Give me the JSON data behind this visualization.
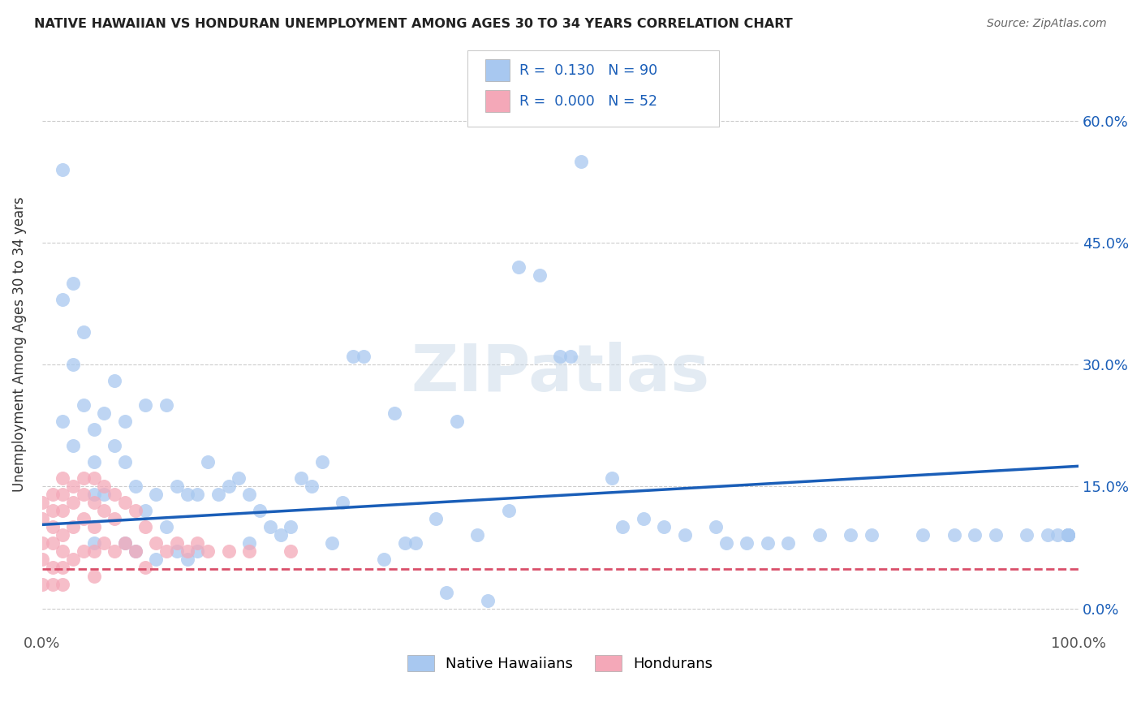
{
  "title": "NATIVE HAWAIIAN VS HONDURAN UNEMPLOYMENT AMONG AGES 30 TO 34 YEARS CORRELATION CHART",
  "source": "Source: ZipAtlas.com",
  "ylabel": "Unemployment Among Ages 30 to 34 years",
  "xlim": [
    0.0,
    1.0
  ],
  "ylim": [
    -0.03,
    0.68
  ],
  "yticks": [
    0.0,
    0.15,
    0.3,
    0.45,
    0.6
  ],
  "ytick_labels": [
    "0.0%",
    "15.0%",
    "30.0%",
    "45.0%",
    "60.0%"
  ],
  "xticks": [
    0.0,
    1.0
  ],
  "xtick_labels": [
    "0.0%",
    "100.0%"
  ],
  "r_hawaiian": 0.13,
  "n_hawaiian": 90,
  "r_honduran": 0.0,
  "n_honduran": 52,
  "hawaiian_color": "#a8c8f0",
  "honduran_color": "#f4a8b8",
  "hawaiian_line_color": "#1a5eb8",
  "honduran_line_color": "#d94f6a",
  "grid_color": "#cccccc",
  "watermark": "ZIPatlas",
  "haw_line_x0": 0.0,
  "haw_line_y0": 0.103,
  "haw_line_x1": 1.0,
  "haw_line_y1": 0.175,
  "hon_line_y": 0.048,
  "hawaiian_x": [
    0.02,
    0.02,
    0.02,
    0.03,
    0.03,
    0.03,
    0.04,
    0.04,
    0.05,
    0.05,
    0.05,
    0.05,
    0.06,
    0.06,
    0.07,
    0.07,
    0.08,
    0.08,
    0.08,
    0.09,
    0.09,
    0.1,
    0.1,
    0.11,
    0.11,
    0.12,
    0.12,
    0.13,
    0.13,
    0.14,
    0.14,
    0.15,
    0.15,
    0.16,
    0.17,
    0.18,
    0.19,
    0.2,
    0.2,
    0.21,
    0.22,
    0.23,
    0.24,
    0.25,
    0.26,
    0.27,
    0.28,
    0.29,
    0.3,
    0.31,
    0.33,
    0.34,
    0.35,
    0.36,
    0.38,
    0.39,
    0.4,
    0.42,
    0.43,
    0.45,
    0.46,
    0.48,
    0.5,
    0.51,
    0.52,
    0.55,
    0.56,
    0.58,
    0.6,
    0.62,
    0.65,
    0.66,
    0.68,
    0.7,
    0.72,
    0.75,
    0.78,
    0.8,
    0.85,
    0.88,
    0.9,
    0.92,
    0.95,
    0.97,
    0.98,
    0.99,
    0.99,
    0.99,
    0.99,
    0.99
  ],
  "hawaiian_y": [
    0.54,
    0.38,
    0.23,
    0.4,
    0.3,
    0.2,
    0.34,
    0.25,
    0.22,
    0.18,
    0.14,
    0.08,
    0.24,
    0.14,
    0.28,
    0.2,
    0.23,
    0.18,
    0.08,
    0.15,
    0.07,
    0.25,
    0.12,
    0.14,
    0.06,
    0.25,
    0.1,
    0.15,
    0.07,
    0.14,
    0.06,
    0.14,
    0.07,
    0.18,
    0.14,
    0.15,
    0.16,
    0.14,
    0.08,
    0.12,
    0.1,
    0.09,
    0.1,
    0.16,
    0.15,
    0.18,
    0.08,
    0.13,
    0.31,
    0.31,
    0.06,
    0.24,
    0.08,
    0.08,
    0.11,
    0.02,
    0.23,
    0.09,
    0.01,
    0.12,
    0.42,
    0.41,
    0.31,
    0.31,
    0.55,
    0.16,
    0.1,
    0.11,
    0.1,
    0.09,
    0.1,
    0.08,
    0.08,
    0.08,
    0.08,
    0.09,
    0.09,
    0.09,
    0.09,
    0.09,
    0.09,
    0.09,
    0.09,
    0.09,
    0.09,
    0.09,
    0.09,
    0.09,
    0.09,
    0.09
  ],
  "honduran_x": [
    0.0,
    0.0,
    0.0,
    0.0,
    0.0,
    0.01,
    0.01,
    0.01,
    0.01,
    0.01,
    0.01,
    0.02,
    0.02,
    0.02,
    0.02,
    0.02,
    0.02,
    0.02,
    0.03,
    0.03,
    0.03,
    0.03,
    0.04,
    0.04,
    0.04,
    0.04,
    0.05,
    0.05,
    0.05,
    0.05,
    0.05,
    0.06,
    0.06,
    0.06,
    0.07,
    0.07,
    0.07,
    0.08,
    0.08,
    0.09,
    0.09,
    0.1,
    0.1,
    0.11,
    0.12,
    0.13,
    0.14,
    0.15,
    0.16,
    0.18,
    0.2,
    0.24
  ],
  "honduran_y": [
    0.13,
    0.11,
    0.08,
    0.06,
    0.03,
    0.14,
    0.12,
    0.1,
    0.08,
    0.05,
    0.03,
    0.16,
    0.14,
    0.12,
    0.09,
    0.07,
    0.05,
    0.03,
    0.15,
    0.13,
    0.1,
    0.06,
    0.16,
    0.14,
    0.11,
    0.07,
    0.16,
    0.13,
    0.1,
    0.07,
    0.04,
    0.15,
    0.12,
    0.08,
    0.14,
    0.11,
    0.07,
    0.13,
    0.08,
    0.12,
    0.07,
    0.1,
    0.05,
    0.08,
    0.07,
    0.08,
    0.07,
    0.08,
    0.07,
    0.07,
    0.07,
    0.07
  ]
}
